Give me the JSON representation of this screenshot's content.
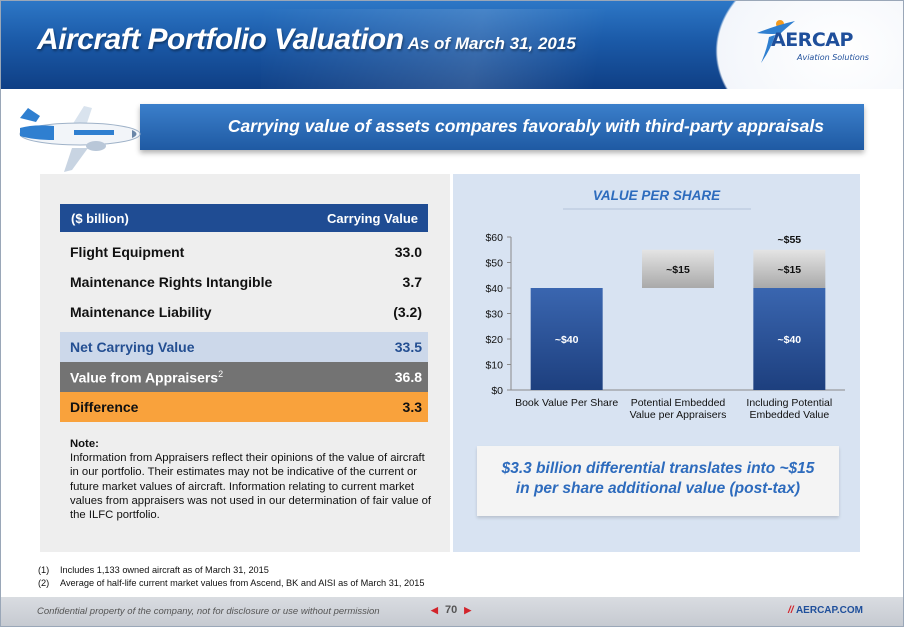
{
  "header": {
    "title": "Aircraft Portfolio Valuation",
    "subtitle": "As of March 31, 2015",
    "logo_text": "AERCAP",
    "logo_tagline": "Aviation Solutions"
  },
  "banner": {
    "text": "Carrying value of assets compares favorably with third-party appraisals"
  },
  "table": {
    "header": {
      "col1": "($ billion)",
      "col2": "Carrying Value"
    },
    "rows": [
      {
        "label": "Flight Equipment",
        "value": "33.0"
      },
      {
        "label": "Maintenance Rights Intangible",
        "value": "3.7"
      },
      {
        "label": "Maintenance Liability",
        "value": "(3.2)"
      }
    ],
    "summary": [
      {
        "label": "Net Carrying Value",
        "value": "33.5"
      },
      {
        "label": "Value from Appraisers",
        "sup": "2",
        "value": "36.8"
      },
      {
        "label": "Difference",
        "value": "3.3"
      }
    ]
  },
  "note": {
    "title": "Note:",
    "text": "Information from Appraisers reflect their opinions of the value of aircraft in our portfolio. Their estimates may not be indicative of the current or future market values of aircraft. Information relating to current market values from appraisers was not used in our determination of fair value of the ILFC portfolio."
  },
  "chart_data": {
    "type": "bar",
    "stacked": true,
    "title": "VALUE PER SHARE",
    "categories": [
      "Book Value Per Share",
      "Potential Embedded Value per Appraisers",
      "Including Potential Embedded Value"
    ],
    "category_lines": [
      [
        "Book Value Per Share"
      ],
      [
        "Potential Embedded",
        "Value per Appraisers"
      ],
      [
        "Including Potential",
        "Embedded Value"
      ]
    ],
    "series": [
      {
        "values": [
          40,
          0,
          40
        ],
        "labels": [
          "~$40",
          "",
          "~$40"
        ],
        "color": "#2a5197"
      },
      {
        "values": [
          0,
          15,
          15
        ],
        "offsets": [
          0,
          40,
          0
        ],
        "labels": [
          "",
          "~$15",
          "~$15"
        ],
        "color": "#bfbfbf"
      }
    ],
    "totals": [
      "",
      "",
      "~$55"
    ],
    "ylim": [
      0,
      60
    ],
    "yticks": [
      "$0",
      "$10",
      "$20",
      "$30",
      "$40",
      "$50",
      "$60"
    ],
    "ytick_values": [
      0,
      10,
      20,
      30,
      40,
      50,
      60
    ],
    "grid": false
  },
  "callout": {
    "line1": "$3.3 billion differential translates into ~$15",
    "line2": "in per share additional value (post-tax)"
  },
  "footnotes": [
    {
      "num": "(1)",
      "text": "Includes 1,133 owned aircraft as of March 31, 2015"
    },
    {
      "num": "(2)",
      "text": "Average of half-life current market values from Ascend, BK and AISI as of March 31, 2015"
    }
  ],
  "footer": {
    "confidential": "Confidential property of the company, not for disclosure or use without permission",
    "page": "70",
    "site_prefix": "//",
    "site": "AERCAP.COM"
  }
}
